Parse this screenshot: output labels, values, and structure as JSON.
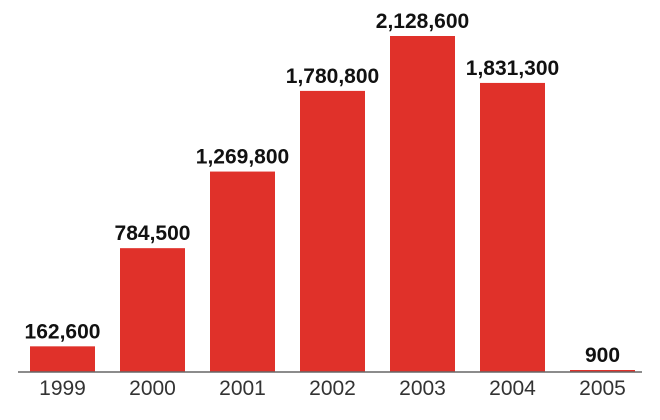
{
  "chart_data": {
    "type": "bar",
    "categories": [
      "1999",
      "2000",
      "2001",
      "2002",
      "2003",
      "2004",
      "2005"
    ],
    "values": [
      162600,
      784500,
      1269800,
      1780800,
      2128600,
      1831300,
      900
    ],
    "value_labels": [
      "162,600",
      "784,500",
      "1,269,800",
      "1,780,800",
      "2,128,600",
      "1,831,300",
      "900"
    ],
    "title": "",
    "xlabel": "",
    "ylabel": "",
    "ylim": [
      0,
      2128600
    ],
    "grid": false,
    "legend": "none",
    "colors": {
      "bar": "#e0312a",
      "baseline": "#666666",
      "value_label": "#111111",
      "tick_label": "#333333"
    }
  }
}
